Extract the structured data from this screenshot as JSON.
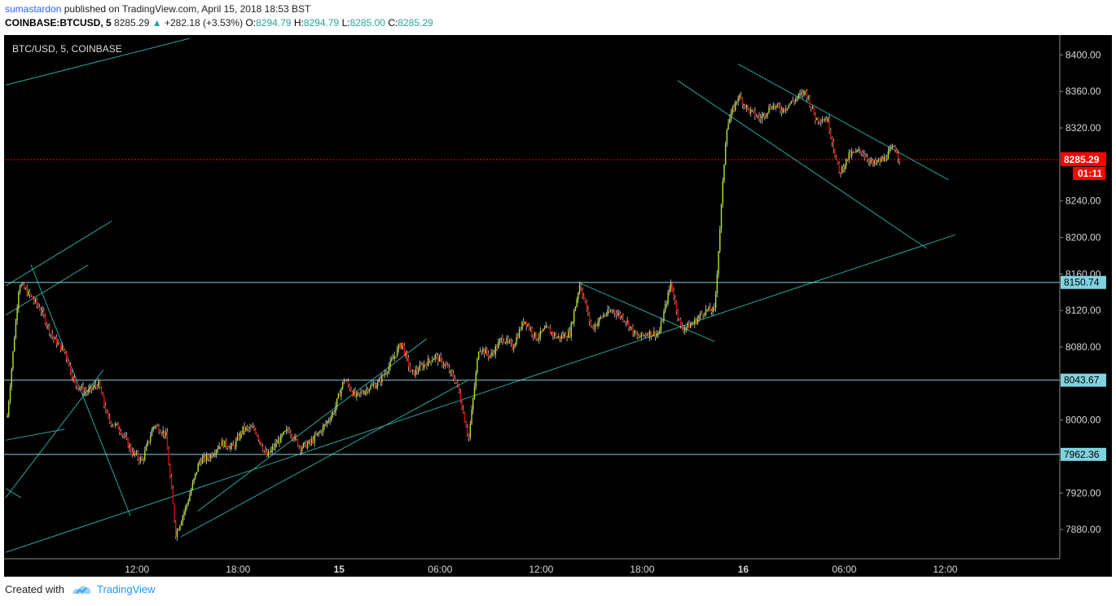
{
  "header": {
    "author": "sumastardon",
    "published_text": "published on TradingView.com, April 15, 2018 18:53 BST",
    "symbol": "COINBASE:BTCUSD, 5",
    "last": "8285.29",
    "change": "+282.18 (+3.53%)",
    "open_label": "O:",
    "open": "8294.79",
    "high_label": "H:",
    "high": "8294.79",
    "low_label": "L:",
    "low": "8285.00",
    "close_label": "C:",
    "close": "8285.29"
  },
  "footer": {
    "created_with": "Created with",
    "brand": "TradingView"
  },
  "chart_data": {
    "type": "candlestick",
    "title": "BTC/USD, 5, COINBASE",
    "ylim": [
      7848,
      8420
    ],
    "y_ticks": [
      7880,
      7920,
      8000,
      8080,
      8120,
      8160,
      8200,
      8240,
      8320,
      8360,
      8400
    ],
    "x_ticks": [
      "12:00",
      "18:00",
      "15",
      "06:00",
      "12:00",
      "18:00",
      "16",
      "06:00",
      "12:00"
    ],
    "x_ticks_bold": [
      "15",
      "16"
    ],
    "x_tick_hours": [
      12,
      18,
      24,
      30,
      36,
      42,
      48,
      54,
      60
    ],
    "x_range_hours": [
      4.2,
      66.8
    ],
    "current_price": {
      "value": 8285.29,
      "label": "8285.29",
      "countdown": "01:11",
      "color": "#ff0000"
    },
    "horizontal_levels": [
      {
        "value": 8150.74,
        "label": "8150.74"
      },
      {
        "value": 8043.67,
        "label": "8043.67"
      },
      {
        "value": 7962.36,
        "label": "7962.36"
      }
    ],
    "colors": {
      "up": "#b4e61e",
      "down": "#e00000",
      "trendline": "#26a69a",
      "level": "#7fd3e0"
    },
    "series": [
      {
        "name": "BTC/USD",
        "points": [
          [
            4.3,
            8005
          ],
          [
            5.0,
            8150
          ],
          [
            5.7,
            8135
          ],
          [
            6.3,
            8120
          ],
          [
            7.0,
            8090
          ],
          [
            7.7,
            8075
          ],
          [
            8.3,
            8040
          ],
          [
            9.0,
            8030
          ],
          [
            9.7,
            8040
          ],
          [
            10.3,
            8000
          ],
          [
            11.0,
            7990
          ],
          [
            11.7,
            7965
          ],
          [
            12.3,
            7955
          ],
          [
            13.0,
            7995
          ],
          [
            13.7,
            7985
          ],
          [
            14.3,
            7875
          ],
          [
            15.0,
            7910
          ],
          [
            15.7,
            7955
          ],
          [
            16.3,
            7960
          ],
          [
            17.0,
            7975
          ],
          [
            17.7,
            7970
          ],
          [
            18.3,
            7990
          ],
          [
            19.0,
            7990
          ],
          [
            19.7,
            7960
          ],
          [
            20.3,
            7975
          ],
          [
            21.0,
            7990
          ],
          [
            21.7,
            7970
          ],
          [
            22.3,
            7975
          ],
          [
            23.0,
            7990
          ],
          [
            23.7,
            8010
          ],
          [
            24.3,
            8045
          ],
          [
            25.0,
            8025
          ],
          [
            25.7,
            8035
          ],
          [
            26.3,
            8040
          ],
          [
            27.0,
            8060
          ],
          [
            27.7,
            8085
          ],
          [
            28.3,
            8050
          ],
          [
            29.0,
            8060
          ],
          [
            29.7,
            8070
          ],
          [
            30.3,
            8060
          ],
          [
            31.0,
            8040
          ],
          [
            31.7,
            7980
          ],
          [
            32.3,
            8080
          ],
          [
            33.0,
            8070
          ],
          [
            33.7,
            8090
          ],
          [
            34.3,
            8080
          ],
          [
            35.0,
            8110
          ],
          [
            35.7,
            8090
          ],
          [
            36.3,
            8100
          ],
          [
            37.0,
            8090
          ],
          [
            37.7,
            8095
          ],
          [
            38.3,
            8150
          ],
          [
            39.0,
            8100
          ],
          [
            39.7,
            8115
          ],
          [
            40.3,
            8120
          ],
          [
            41.0,
            8110
          ],
          [
            41.7,
            8090
          ],
          [
            42.3,
            8095
          ],
          [
            43.0,
            8095
          ],
          [
            43.7,
            8150
          ],
          [
            44.3,
            8100
          ],
          [
            45.0,
            8105
          ],
          [
            45.7,
            8120
          ],
          [
            46.3,
            8120
          ],
          [
            47.0,
            8320
          ],
          [
            47.7,
            8355
          ],
          [
            48.3,
            8340
          ],
          [
            49.0,
            8330
          ],
          [
            49.7,
            8345
          ],
          [
            50.3,
            8340
          ],
          [
            51.0,
            8350
          ],
          [
            51.7,
            8360
          ],
          [
            52.3,
            8330
          ],
          [
            53.0,
            8330
          ],
          [
            53.7,
            8270
          ],
          [
            54.3,
            8290
          ],
          [
            55.0,
            8295
          ],
          [
            55.7,
            8280
          ],
          [
            56.3,
            8285
          ],
          [
            57.0,
            8300
          ],
          [
            57.3,
            8285
          ]
        ]
      }
    ],
    "trendlines": [
      [
        [
          4.2,
          7855
        ],
        [
          60.6,
          8203
        ]
      ],
      [
        [
          15.6,
          7900
        ],
        [
          29.2,
          8089
        ]
      ],
      [
        [
          14.6,
          7872
        ],
        [
          31.6,
          8043
        ]
      ],
      [
        [
          4.2,
          7915
        ],
        [
          10.0,
          8055
        ]
      ],
      [
        [
          5.7,
          8170
        ],
        [
          11.6,
          7895
        ]
      ],
      [
        [
          4.2,
          7978
        ],
        [
          7.7,
          7990
        ]
      ],
      [
        [
          4.2,
          8147
        ],
        [
          10.5,
          8218
        ]
      ],
      [
        [
          4.2,
          8367
        ],
        [
          15.1,
          8418
        ]
      ],
      [
        [
          38.3,
          8150
        ],
        [
          46.3,
          8086
        ]
      ],
      [
        [
          47.7,
          8390
        ],
        [
          60.2,
          8263
        ]
      ],
      [
        [
          44.1,
          8372
        ],
        [
          58.9,
          8188
        ]
      ],
      [
        [
          4.2,
          8115
        ],
        [
          9.1,
          8170
        ]
      ],
      [
        [
          4.2,
          7925
        ],
        [
          5.1,
          7915
        ]
      ]
    ]
  }
}
